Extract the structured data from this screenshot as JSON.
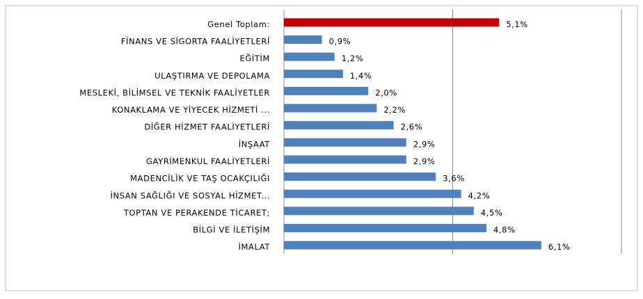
{
  "chart_data": {
    "type": "bar",
    "orientation": "horizontal",
    "categories": [
      "Genel Toplam:",
      "FİNANS VE SİGORTA FAALİYETLERİ",
      "EĞİTİM",
      "ULAŞTIRMA VE DEPOLAMA",
      "MESLEKİ, BİLİMSEL VE TEKNİK FAALİYETLER",
      "KONAKLAMA VE YİYECEK HİZMETİ ...",
      "DİĞER HİZMET FAALİYETLERİ",
      "İNŞAAT",
      "GAYRİMENKUL FAALİYETLERİ",
      "MADENCİLİK VE TAŞ OCAKÇILIĞI",
      "İNSAN SAĞLIĞI VE SOSYAL HİZMET...",
      "TOPTAN VE PERAKENDE TİCARET;",
      "BİLGİ VE İLETİŞİM",
      "İMALAT"
    ],
    "values": [
      5.1,
      0.9,
      1.2,
      1.4,
      2.0,
      2.2,
      2.6,
      2.9,
      2.9,
      3.6,
      4.2,
      4.5,
      4.8,
      6.1
    ],
    "value_labels": [
      "5,1%",
      "0,9%",
      "1,2%",
      "1,4%",
      "2,0%",
      "2,2%",
      "2,6%",
      "2,9%",
      "2,9%",
      "3,6%",
      "4,2%",
      "4,5%",
      "4,8%",
      "6,1%"
    ],
    "colors": [
      "#c00000",
      "#4f81bd",
      "#4f81bd",
      "#4f81bd",
      "#4f81bd",
      "#4f81bd",
      "#4f81bd",
      "#4f81bd",
      "#4f81bd",
      "#4f81bd",
      "#4f81bd",
      "#4f81bd",
      "#4f81bd",
      "#4f81bd"
    ],
    "xlim": [
      0,
      8
    ],
    "xticks": [
      0,
      4,
      8
    ],
    "grid": true
  }
}
